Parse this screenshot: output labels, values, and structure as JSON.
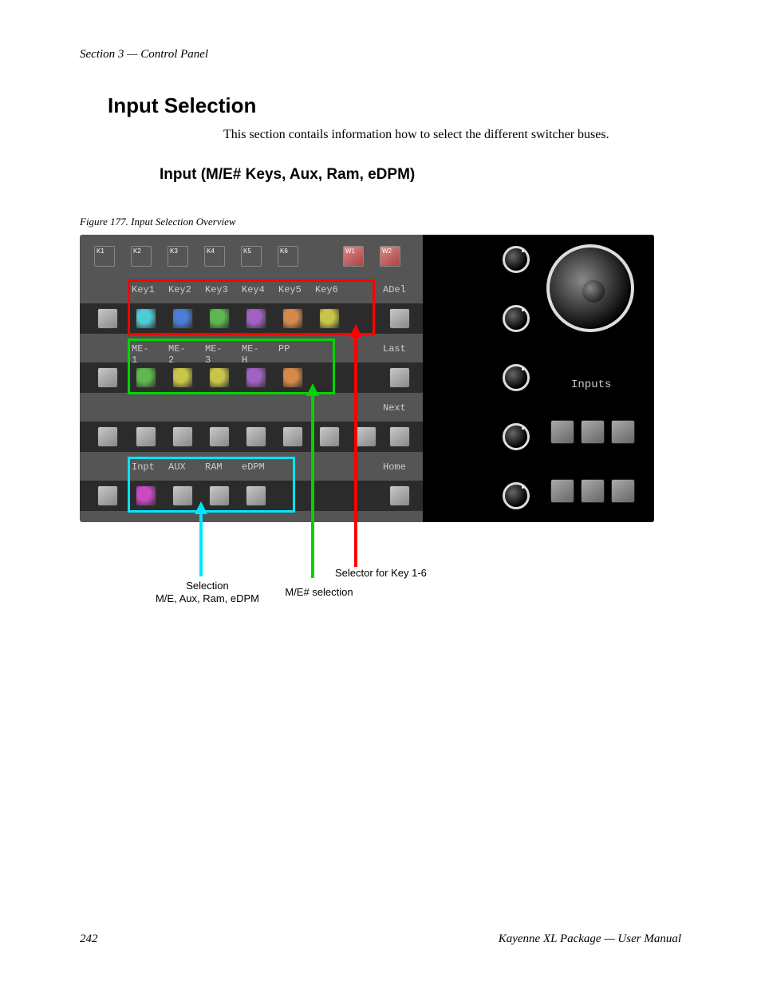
{
  "header": "Section 3 — Control Panel",
  "title": "Input Selection",
  "intro": "This section contails information how to select the different switcher buses.",
  "subtitle": "Input (M/E# Keys, Aux, Ram, eDPM)",
  "figcap": "Figure 177.  Input Selection Overview",
  "top_small": [
    "K1",
    "K2",
    "K3",
    "K4",
    "K5",
    "K6",
    "W1",
    "W2"
  ],
  "row1_labels": [
    "Key1",
    "Key2",
    "Key3",
    "Key4",
    "Key5",
    "Key6"
  ],
  "row1_end": "ADel",
  "row1_colors": [
    "#4ecbd4",
    "#4a7dd6",
    "#5fb84f",
    "#a063c4",
    "#d68a4a",
    "#c9c54a"
  ],
  "row2_labels": [
    "ME-1",
    "ME-2",
    "ME-3",
    "ME-H",
    "PP"
  ],
  "row2_end": "Last",
  "row2_colors": [
    "#5fb84f",
    "#c9c54a",
    "#c9c54a",
    "#a063c4",
    "#d68a4a"
  ],
  "row3_end": "Next",
  "row4_labels": [
    "Inpt",
    "AUX",
    "RAM",
    "eDPM"
  ],
  "row4_end": "Home",
  "row4_first_color": "#c94ac2",
  "inputs_text": "Inputs",
  "hl_red": "#ff0000",
  "hl_green": "#00d400",
  "hl_cyan": "#00e5ff",
  "ann1": "Selector for Key 1-6",
  "ann2": "M/E# selection",
  "ann3_line1": "Selection",
  "ann3_line2": "M/E, Aux, Ram, eDPM",
  "footer_page": "242",
  "footer_title": "Kayenne XL Package  —  User Manual"
}
